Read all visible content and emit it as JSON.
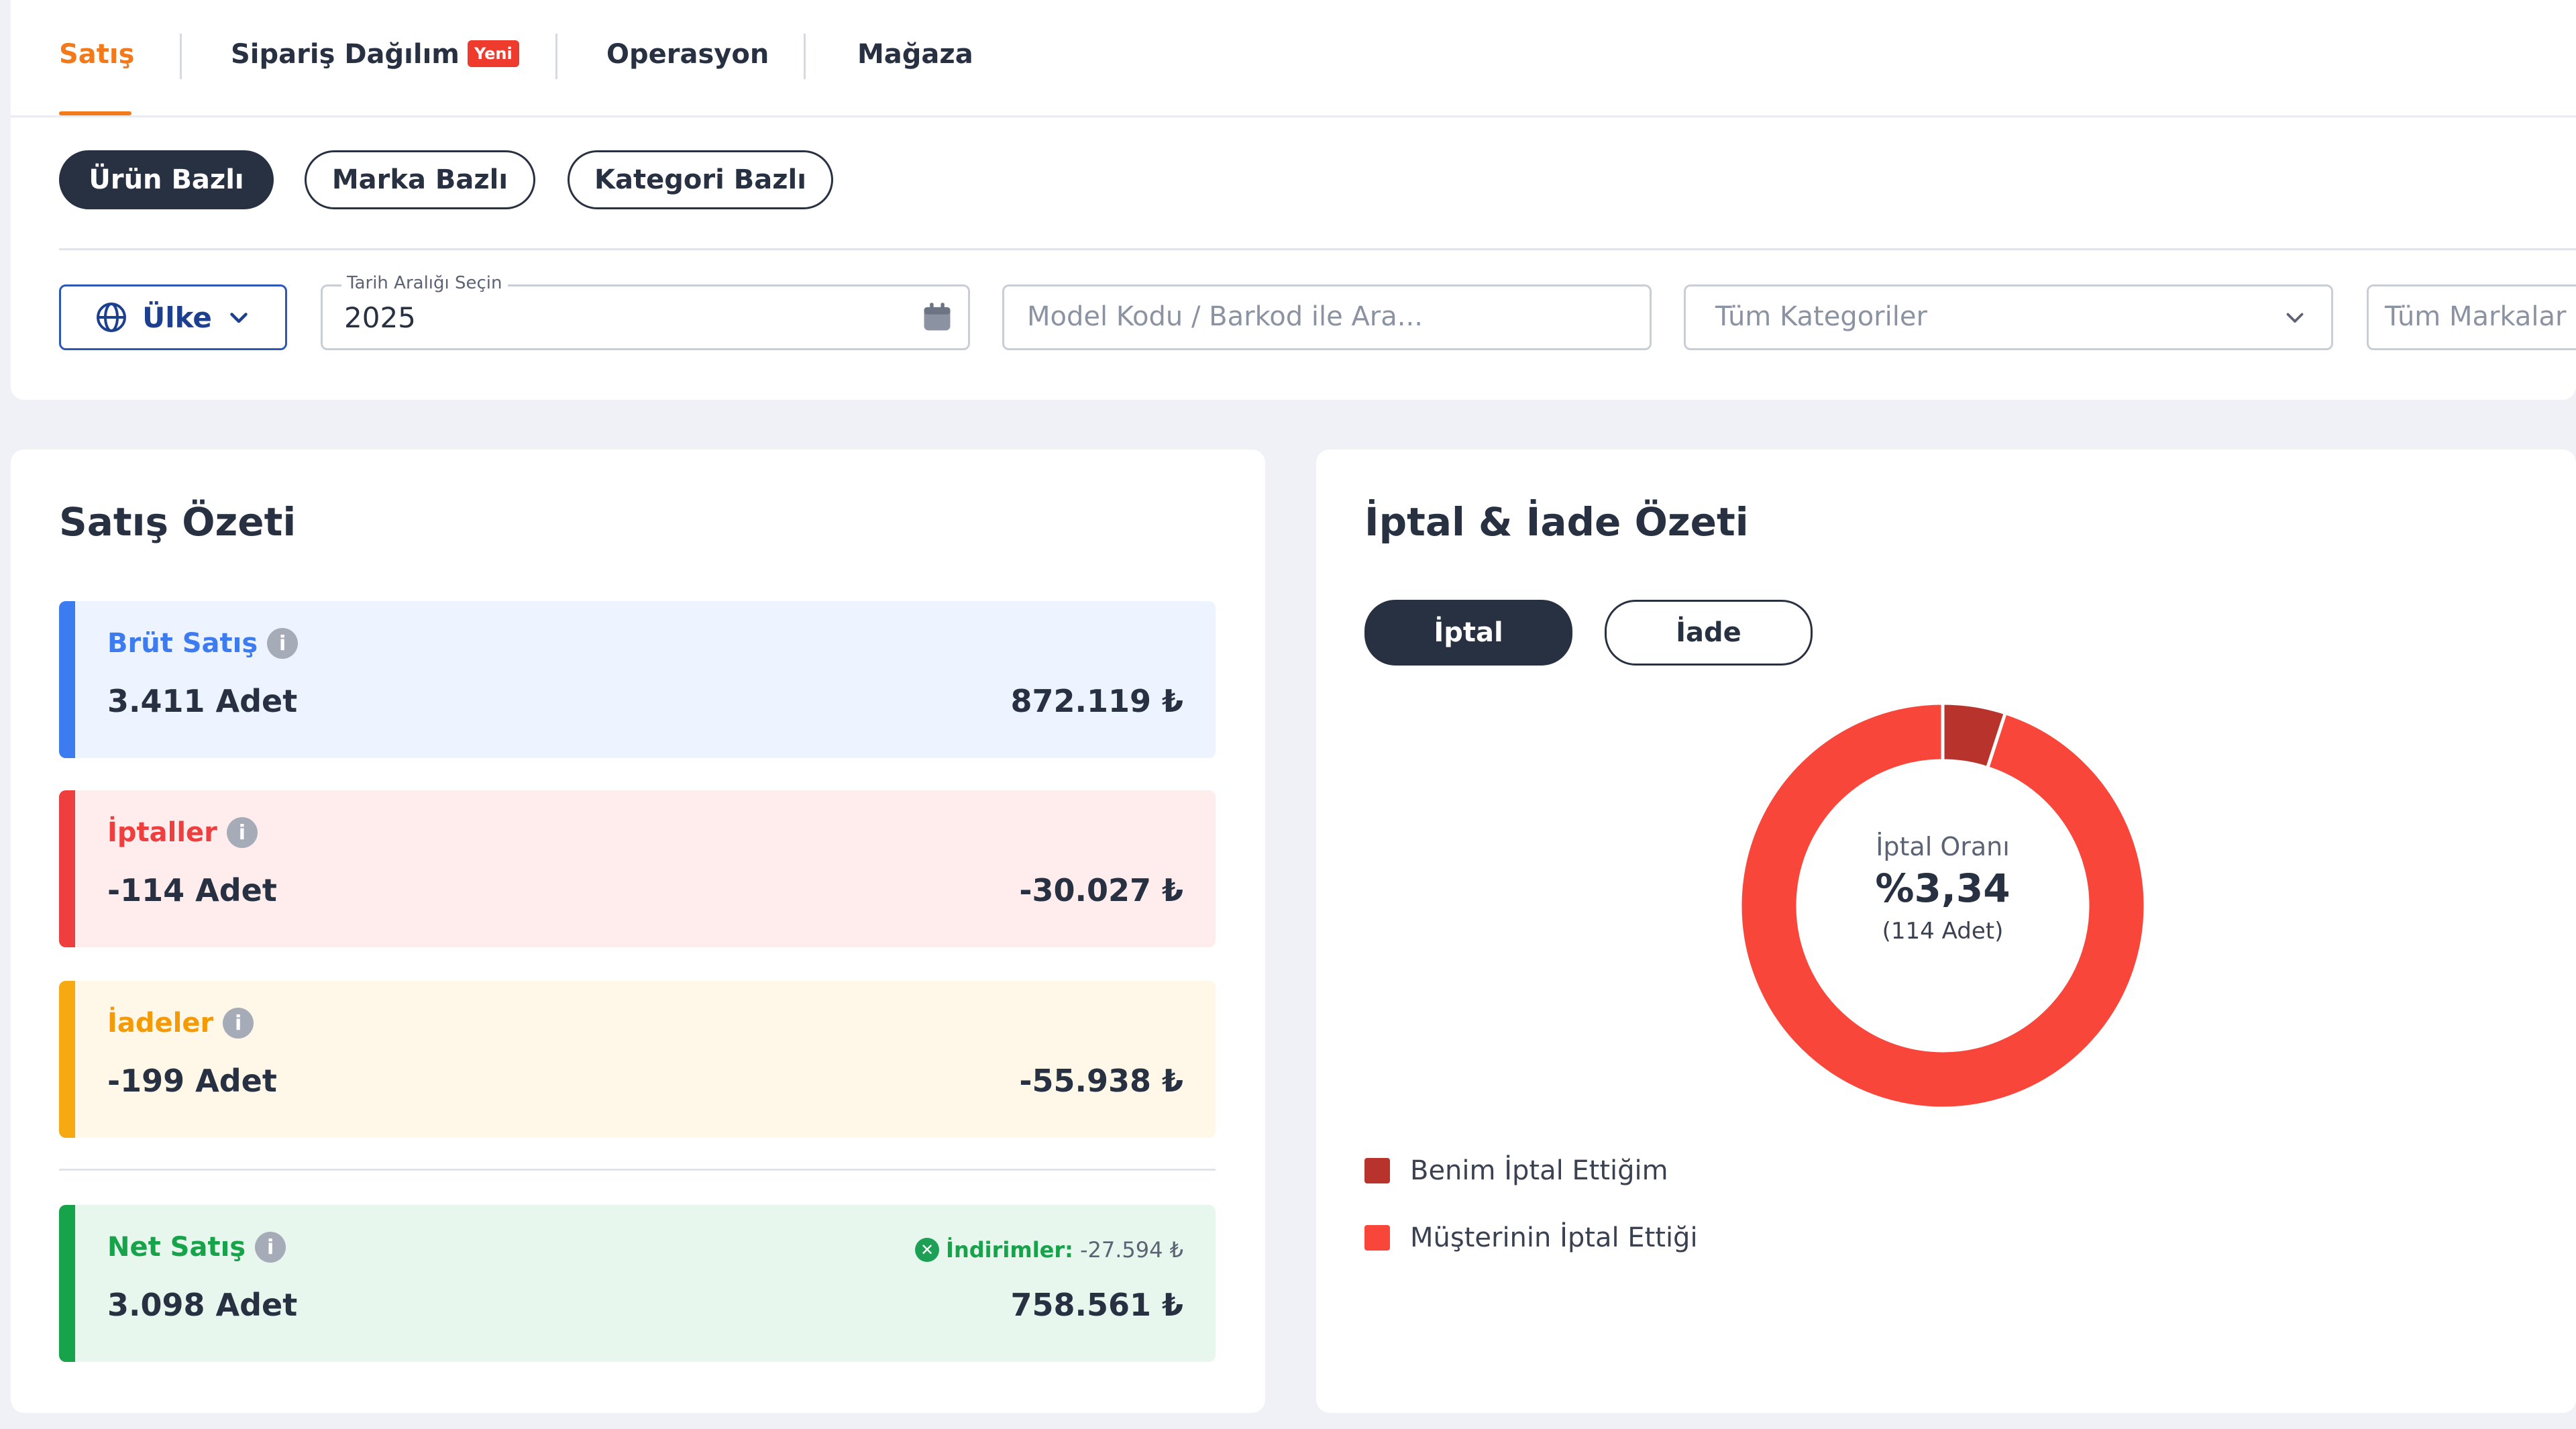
{
  "tabs": [
    {
      "label": "Satış",
      "active": true
    },
    {
      "label": "Sipariş Dağılım",
      "badge": "Yeni"
    },
    {
      "label": "Operasyon"
    },
    {
      "label": "Mağaza"
    }
  ],
  "view_toggle": [
    "Ürün Bazlı",
    "Marka Bazlı",
    "Kategori Bazlı"
  ],
  "filters": {
    "country_label": "Ülke",
    "date_legend": "Tarih Aralığı Seçin",
    "date_value": "2025",
    "search_placeholder": "Model Kodu / Barkod ile Ara...",
    "category_placeholder": "Tüm Kategoriler",
    "brand_placeholder": "Tüm Markalar"
  },
  "sales_summary": {
    "title": "Satış Özeti",
    "items": [
      {
        "label": "Brüt Satış",
        "qty": "3.411 Adet",
        "amount": "872.119 ₺",
        "color": "#3c7bf0",
        "bg": "#edf3ff",
        "label_color": "#3c7bf0"
      },
      {
        "label": "İptaller",
        "qty": "-114 Adet",
        "amount": "-30.027 ₺",
        "color": "#ee3e3e",
        "bg": "#ffecec",
        "label_color": "#ee3e3e"
      },
      {
        "label": "İadeler",
        "qty": "-199 Adet",
        "amount": "-55.938 ₺",
        "color": "#f6a911",
        "bg": "#fff7e8",
        "label_color": "#f39a06"
      }
    ],
    "net": {
      "label": "Net Satış",
      "qty": "3.098 Adet",
      "amount": "758.561 ₺",
      "discount_label": "İndirimler:",
      "discount_value": "-27.594 ₺",
      "color": "#16a34a",
      "bg": "#e8f7ee"
    }
  },
  "return_summary": {
    "title": "İptal & İade Özeti",
    "toggle": [
      "İptal",
      "İade"
    ],
    "center_label": "İptal Oranı",
    "center_value": "%3,34",
    "center_sub": "(114 Adet)",
    "chart_data": {
      "type": "pie",
      "categories": [
        "Benim İptal Ettiğim",
        "Müşterinin İptal Ettiği"
      ],
      "values": [
        5,
        95
      ],
      "colors": [
        "#b8332b",
        "#f9463b"
      ]
    },
    "legend": [
      {
        "label": "Benim İptal Ettiğim",
        "color": "#b8332b"
      },
      {
        "label": "Müşterinin İptal Ettiği",
        "color": "#f9463b"
      }
    ]
  }
}
